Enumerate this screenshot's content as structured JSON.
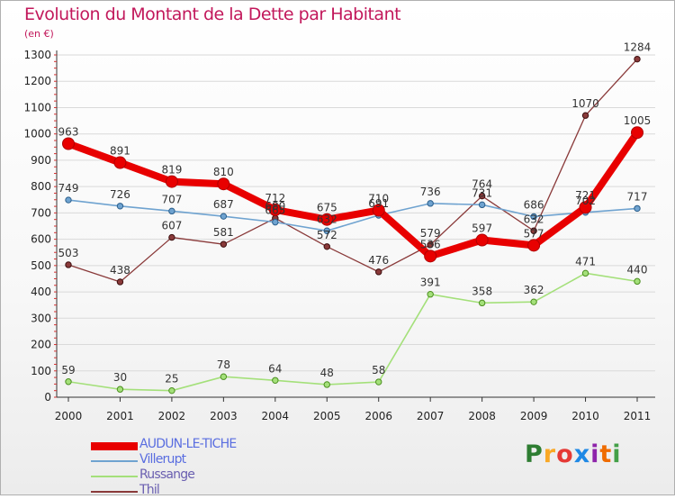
{
  "title": "Evolution du Montant de la Dette par Habitant",
  "subtitle": "(en €)",
  "logo": {
    "text": "Proxiti",
    "colors": [
      "#2e7d32",
      "#f9a825",
      "#e53935",
      "#1e88e5",
      "#8e24aa",
      "#ef6c00",
      "#43a047"
    ]
  },
  "chart_data": {
    "type": "line",
    "x": [
      "2000",
      "2001",
      "2002",
      "2003",
      "2004",
      "2005",
      "2006",
      "2007",
      "2008",
      "2009",
      "2010",
      "2011"
    ],
    "ylim": [
      0,
      1300
    ],
    "yticks": [
      "0",
      "100",
      "200",
      "300",
      "400",
      "500",
      "600",
      "700",
      "800",
      "900",
      "1000",
      "1100",
      "1200",
      "1300"
    ],
    "grid": true,
    "legend_position": "bottom-left",
    "series": [
      {
        "name": "AUDUN-LE-TICHE",
        "color": "#e80000",
        "values": [
          963,
          891,
          819,
          810,
          712,
          675,
          710,
          536,
          597,
          577,
          721,
          1005
        ],
        "labels": [
          "963",
          "891",
          "819",
          "810",
          "712",
          "675",
          "710",
          "536",
          "597",
          "577",
          "721",
          "1005"
        ]
      },
      {
        "name": "Villerupt",
        "color": "#6fa3d0",
        "values": [
          749,
          726,
          707,
          687,
          665,
          632,
          691,
          736,
          731,
          686,
          702,
          717
        ],
        "labels": [
          "749",
          "726",
          "707",
          "687",
          "665",
          "632",
          "691",
          "736",
          "731",
          "686",
          "702",
          "717"
        ]
      },
      {
        "name": "Russange",
        "color": "#a4e07a",
        "values": [
          59,
          30,
          25,
          78,
          64,
          48,
          58,
          391,
          358,
          362,
          471,
          440
        ],
        "labels": [
          "59",
          "30",
          "25",
          "78",
          "64",
          "48",
          "58",
          "391",
          "358",
          "362",
          "471",
          "440"
        ]
      },
      {
        "name": "Thil",
        "color": "#8a3a3a",
        "values": [
          503,
          438,
          607,
          581,
          680,
          572,
          476,
          579,
          764,
          632,
          1070,
          1284
        ],
        "labels": [
          "503",
          "438",
          "607",
          "581",
          "680",
          "572",
          "476",
          "579",
          "764",
          "632",
          "1070",
          "1284"
        ]
      }
    ]
  }
}
